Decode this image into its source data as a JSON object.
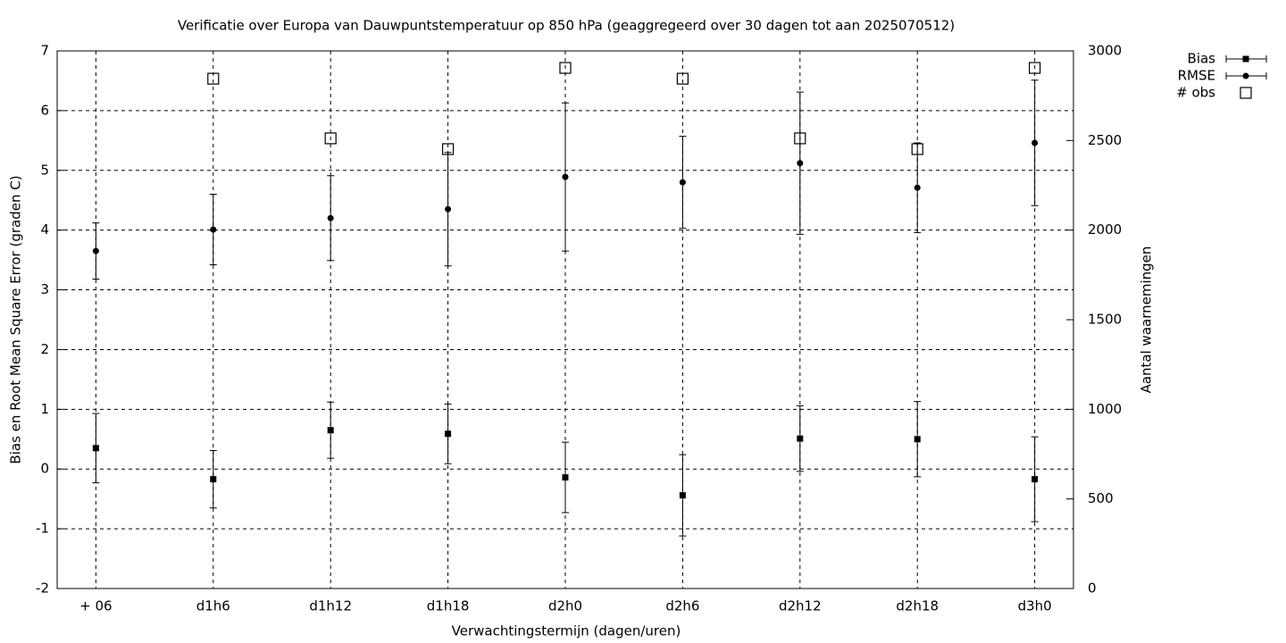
{
  "chart_data": {
    "type": "errorbar",
    "title": "Verificatie over Europa van Dauwpuntstemperatuur op 850 hPa (geaggregeerd over 30 dagen tot aan 2025070512)",
    "xlabel": "Verwachtingstermijn (dagen/uren)",
    "ylabel": "Bias en Root Mean Square Error (graden C)",
    "y2label": "Aantal waarnemingen",
    "categories": [
      "+ 06",
      "d1h6",
      "d1h12",
      "d1h18",
      "d2h0",
      "d2h6",
      "d2h12",
      "d2h18",
      "d3h0"
    ],
    "series": [
      {
        "name": "Bias",
        "color": "#000000",
        "marker": "square",
        "values": [
          0.35,
          -0.17,
          0.65,
          0.59,
          -0.14,
          -0.44,
          0.51,
          0.5,
          -0.17
        ],
        "errors": [
          0.58,
          0.48,
          0.47,
          0.5,
          0.59,
          0.68,
          0.55,
          0.63,
          0.71
        ]
      },
      {
        "name": "RMSE",
        "color": "#000000",
        "marker": "circle",
        "values": [
          3.65,
          4.01,
          4.2,
          4.35,
          4.89,
          4.8,
          5.12,
          4.71,
          5.46
        ],
        "errors": [
          0.47,
          0.59,
          0.71,
          0.95,
          1.24,
          0.77,
          1.19,
          0.75,
          1.05
        ]
      },
      {
        "name": "# obs",
        "color": "#000000",
        "marker": "open-square",
        "axis": "y2",
        "values": [
          null,
          2845,
          2512,
          2452,
          2905,
          2845,
          2512,
          2452,
          2905
        ]
      }
    ],
    "ylim": [
      -2,
      7
    ],
    "yticks": [
      -2,
      -1,
      0,
      1,
      2,
      3,
      4,
      5,
      6,
      7
    ],
    "y2lim": [
      0,
      3000
    ],
    "y2ticks": [
      0,
      500,
      1000,
      1500,
      2000,
      2500,
      3000
    ],
    "grid": true,
    "legend": "right"
  }
}
